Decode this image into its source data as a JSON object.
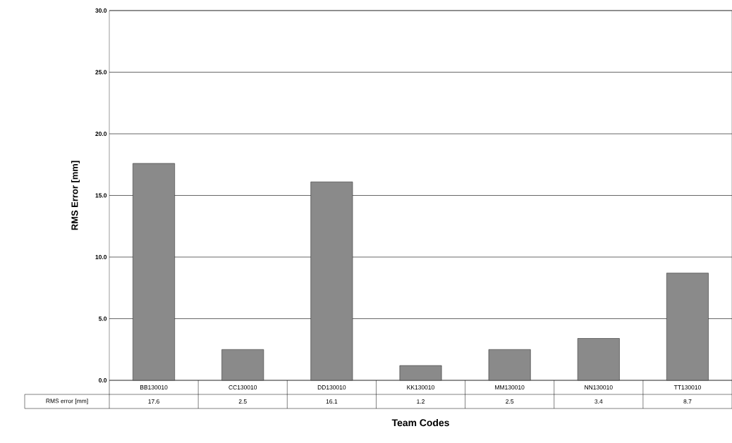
{
  "chart_data": {
    "type": "bar",
    "categories": [
      "BB130010",
      "CC130010",
      "DD130010",
      "KK130010",
      "MM130010",
      "NN130010",
      "TT130010"
    ],
    "series": [
      {
        "name": "RMS error [mm]",
        "color": "#8a8a8a",
        "values": [
          17.6,
          2.5,
          16.1,
          1.2,
          2.5,
          3.4,
          8.7
        ]
      }
    ],
    "xlabel": "Team Codes",
    "ylabel": "RMS Error [mm]",
    "ylim": [
      0,
      30
    ],
    "yticks": [
      {
        "value": 0,
        "label": "0.0"
      },
      {
        "value": 5,
        "label": "5.0"
      },
      {
        "value": 10,
        "label": "10.0"
      },
      {
        "value": 15,
        "label": "15.0"
      },
      {
        "value": 20,
        "label": "20.0"
      },
      {
        "value": 25,
        "label": "25.0"
      },
      {
        "value": 30,
        "label": "30.0"
      }
    ],
    "grid": "y",
    "data_labels": true
  }
}
